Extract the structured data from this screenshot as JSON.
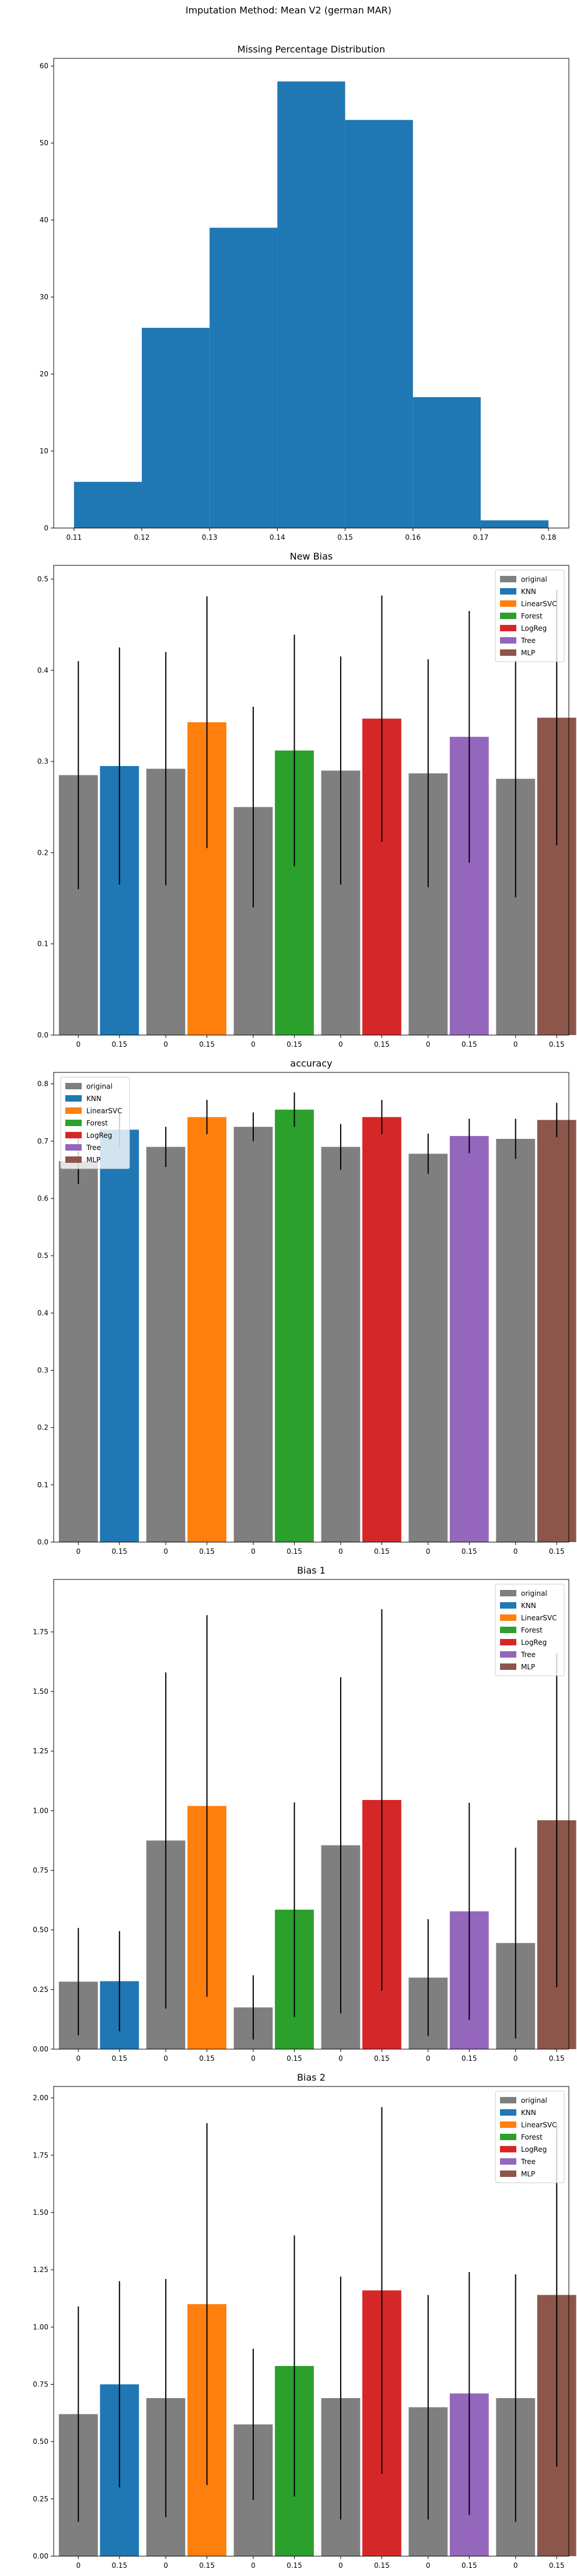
{
  "figure": {
    "suptitle": "Imputation Method: Mean V2 (german MAR)"
  },
  "colors": {
    "original": "#7f7f7f",
    "KNN": "#1f77b4",
    "LinearSVC": "#ff7f0e",
    "Forest": "#2ca02c",
    "LogReg": "#d62728",
    "Tree": "#9467bd",
    "MLP": "#8c564b",
    "hist": "#1f77b4",
    "errorbar": "#000000"
  },
  "chart_data": [
    {
      "type": "histogram",
      "title": "Missing Percentage Distribution",
      "xlim": [
        0.107,
        0.183
      ],
      "ylim": [
        0,
        61
      ],
      "xticks": [
        "0.11",
        "0.12",
        "0.13",
        "0.14",
        "0.15",
        "0.16",
        "0.17",
        "0.18"
      ],
      "yticks": [
        "0",
        "10",
        "20",
        "30",
        "40",
        "50",
        "60"
      ],
      "bins": [
        {
          "from": 0.11,
          "to": 0.12,
          "count": 6
        },
        {
          "from": 0.12,
          "to": 0.13,
          "count": 26
        },
        {
          "from": 0.13,
          "to": 0.14,
          "count": 39
        },
        {
          "from": 0.14,
          "to": 0.15,
          "count": 58
        },
        {
          "from": 0.15,
          "to": 0.16,
          "count": 53
        },
        {
          "from": 0.16,
          "to": 0.17,
          "count": 17
        },
        {
          "from": 0.17,
          "to": 0.18,
          "count": 1
        }
      ]
    },
    {
      "type": "bar",
      "title": "New Bias",
      "ylim": [
        0,
        0.515
      ],
      "yticks": [
        "0.0",
        "0.1",
        "0.2",
        "0.3",
        "0.4",
        "0.5"
      ],
      "legend_position": "top-right",
      "legend": [
        "original",
        "KNN",
        "LinearSVC",
        "Forest",
        "LogReg",
        "Tree",
        "MLP"
      ],
      "groups": [
        {
          "name": "KNN",
          "labels": [
            "0",
            "0.15"
          ],
          "values": [
            0.285,
            0.295
          ],
          "errors": [
            0.125,
            0.13
          ]
        },
        {
          "name": "LinearSVC",
          "labels": [
            "0",
            "0.15"
          ],
          "values": [
            0.292,
            0.343
          ],
          "errors": [
            0.128,
            0.138
          ]
        },
        {
          "name": "Forest",
          "labels": [
            "0",
            "0.15"
          ],
          "values": [
            0.25,
            0.312
          ],
          "errors": [
            0.11,
            0.127
          ]
        },
        {
          "name": "LogReg",
          "labels": [
            "0",
            "0.15"
          ],
          "values": [
            0.29,
            0.347
          ],
          "errors": [
            0.125,
            0.135
          ]
        },
        {
          "name": "Tree",
          "labels": [
            "0",
            "0.15"
          ],
          "values": [
            0.287,
            0.327
          ],
          "errors": [
            0.125,
            0.138
          ]
        },
        {
          "name": "MLP",
          "labels": [
            "0",
            "0.15"
          ],
          "values": [
            0.281,
            0.348
          ],
          "errors": [
            0.13,
            0.14
          ]
        }
      ]
    },
    {
      "type": "bar",
      "title": "accuracy",
      "ylim": [
        0,
        0.82
      ],
      "yticks": [
        "0.0",
        "0.1",
        "0.2",
        "0.3",
        "0.4",
        "0.5",
        "0.6",
        "0.7",
        "0.8"
      ],
      "legend_position": "top-left",
      "legend": [
        "original",
        "KNN",
        "LinearSVC",
        "Forest",
        "LogReg",
        "Tree",
        "MLP"
      ],
      "groups": [
        {
          "name": "KNN",
          "labels": [
            "0",
            "0.15"
          ],
          "values": [
            0.665,
            0.72
          ],
          "errors": [
            0.04,
            0.03
          ]
        },
        {
          "name": "LinearSVC",
          "labels": [
            "0",
            "0.15"
          ],
          "values": [
            0.69,
            0.742
          ],
          "errors": [
            0.035,
            0.03
          ]
        },
        {
          "name": "Forest",
          "labels": [
            "0",
            "0.15"
          ],
          "values": [
            0.725,
            0.755
          ],
          "errors": [
            0.025,
            0.03
          ]
        },
        {
          "name": "LogReg",
          "labels": [
            "0",
            "0.15"
          ],
          "values": [
            0.69,
            0.742
          ],
          "errors": [
            0.04,
            0.03
          ]
        },
        {
          "name": "Tree",
          "labels": [
            "0",
            "0.15"
          ],
          "values": [
            0.678,
            0.709
          ],
          "errors": [
            0.035,
            0.03
          ]
        },
        {
          "name": "MLP",
          "labels": [
            "0",
            "0.15"
          ],
          "values": [
            0.704,
            0.737
          ],
          "errors": [
            0.035,
            0.03
          ]
        }
      ]
    },
    {
      "type": "bar",
      "title": "Bias 1",
      "ylim": [
        0,
        1.97
      ],
      "yticks": [
        "0.00",
        "0.25",
        "0.50",
        "0.75",
        "1.00",
        "1.25",
        "1.50",
        "1.75"
      ],
      "legend_position": "top-right",
      "legend": [
        "original",
        "KNN",
        "LinearSVC",
        "Forest",
        "LogReg",
        "Tree",
        "MLP"
      ],
      "groups": [
        {
          "name": "KNN",
          "labels": [
            "0",
            "0.15"
          ],
          "values": [
            0.283,
            0.285
          ],
          "errors": [
            0.225,
            0.21
          ]
        },
        {
          "name": "LinearSVC",
          "labels": [
            "0",
            "0.15"
          ],
          "values": [
            0.875,
            1.02
          ],
          "errors": [
            0.705,
            0.8
          ]
        },
        {
          "name": "Forest",
          "labels": [
            "0",
            "0.15"
          ],
          "values": [
            0.175,
            0.585
          ],
          "errors": [
            0.135,
            0.45
          ]
        },
        {
          "name": "LogReg",
          "labels": [
            "0",
            "0.15"
          ],
          "values": [
            0.855,
            1.045
          ],
          "errors": [
            0.705,
            0.8
          ]
        },
        {
          "name": "Tree",
          "labels": [
            "0",
            "0.15"
          ],
          "values": [
            0.3,
            0.578
          ],
          "errors": [
            0.245,
            0.455
          ]
        },
        {
          "name": "MLP",
          "labels": [
            "0",
            "0.15"
          ],
          "values": [
            0.445,
            0.96
          ],
          "errors": [
            0.4,
            0.7
          ]
        }
      ]
    },
    {
      "type": "bar",
      "title": "Bias 2",
      "ylim": [
        0,
        2.05
      ],
      "yticks": [
        "0.00",
        "0.25",
        "0.50",
        "0.75",
        "1.00",
        "1.25",
        "1.50",
        "1.75",
        "2.00"
      ],
      "legend_position": "top-right",
      "legend": [
        "original",
        "KNN",
        "LinearSVC",
        "Forest",
        "LogReg",
        "Tree",
        "MLP"
      ],
      "groups": [
        {
          "name": "KNN",
          "labels": [
            "0",
            "0.15"
          ],
          "values": [
            0.62,
            0.75
          ],
          "errors": [
            0.47,
            0.45
          ]
        },
        {
          "name": "LinearSVC",
          "labels": [
            "0",
            "0.15"
          ],
          "values": [
            0.69,
            1.1
          ],
          "errors": [
            0.52,
            0.79
          ]
        },
        {
          "name": "Forest",
          "labels": [
            "0",
            "0.15"
          ],
          "values": [
            0.575,
            0.83
          ],
          "errors": [
            0.33,
            0.57
          ]
        },
        {
          "name": "LogReg",
          "labels": [
            "0",
            "0.15"
          ],
          "values": [
            0.69,
            1.16
          ],
          "errors": [
            0.53,
            0.8
          ]
        },
        {
          "name": "Tree",
          "labels": [
            "0",
            "0.15"
          ],
          "values": [
            0.65,
            0.71
          ],
          "errors": [
            0.49,
            0.53
          ]
        },
        {
          "name": "MLP",
          "labels": [
            "0",
            "0.15"
          ],
          "values": [
            0.69,
            1.14
          ],
          "errors": [
            0.54,
            0.75
          ]
        }
      ]
    }
  ]
}
